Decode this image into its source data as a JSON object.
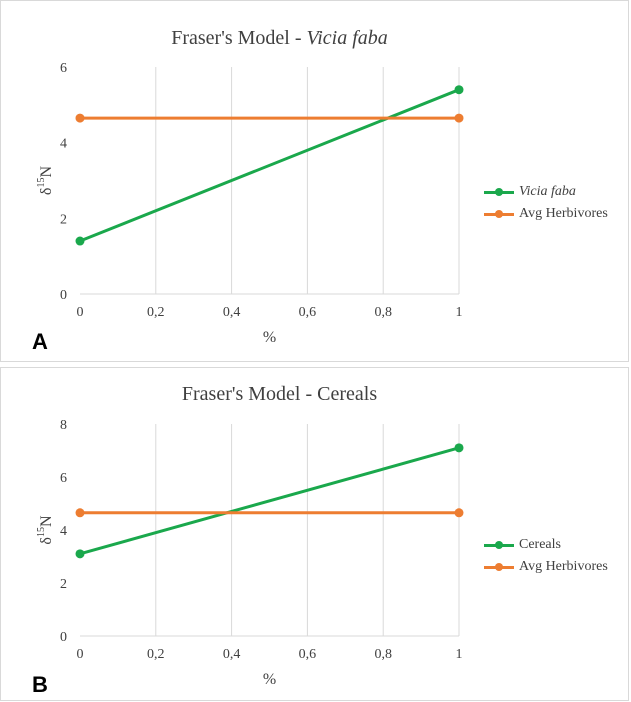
{
  "colors": {
    "green": "#1aa84c",
    "orange": "#ed7d31",
    "grid": "#d9d9d9",
    "text": "#404040"
  },
  "chart_data": [
    {
      "type": "line",
      "panel_label": "A",
      "title_main": "Fraser's Model - ",
      "title_italic": "Vicia faba",
      "xlabel": "%",
      "ylabel_base": "δ",
      "ylabel_sup": "15",
      "ylabel_tail": "N",
      "xlim": [
        0,
        1
      ],
      "ylim": [
        0,
        6
      ],
      "x_ticks": [
        0,
        0.2,
        0.4,
        0.6,
        0.8,
        1
      ],
      "x_tick_labels": [
        "0",
        "0,2",
        "0,4",
        "0,6",
        "0,8",
        "1"
      ],
      "y_ticks": [
        0,
        2,
        4,
        6
      ],
      "y_tick_labels": [
        "0",
        "2",
        "4",
        "6"
      ],
      "grid": "vertical",
      "legend_position": "right",
      "series": [
        {
          "name": "Vicia faba",
          "italic": true,
          "color": "#1aa84c",
          "x": [
            0,
            1
          ],
          "y": [
            1.4,
            5.4
          ]
        },
        {
          "name": "Avg Herbivores",
          "italic": false,
          "color": "#ed7d31",
          "x": [
            0,
            1
          ],
          "y": [
            4.65,
            4.65
          ]
        }
      ]
    },
    {
      "type": "line",
      "panel_label": "B",
      "title_main": "Fraser's Model - Cereals",
      "title_italic": "",
      "xlabel": "%",
      "ylabel_base": "δ",
      "ylabel_sup": "15",
      "ylabel_tail": "N",
      "xlim": [
        0,
        1
      ],
      "ylim": [
        0,
        8
      ],
      "x_ticks": [
        0,
        0.2,
        0.4,
        0.6,
        0.8,
        1
      ],
      "x_tick_labels": [
        "0",
        "0,2",
        "0,4",
        "0,6",
        "0,8",
        "1"
      ],
      "y_ticks": [
        0,
        2,
        4,
        6,
        8
      ],
      "y_tick_labels": [
        "0",
        "2",
        "4",
        "6",
        "8"
      ],
      "grid": "vertical",
      "legend_position": "right",
      "series": [
        {
          "name": "Cereals",
          "italic": false,
          "color": "#1aa84c",
          "x": [
            0,
            1
          ],
          "y": [
            3.1,
            7.1
          ]
        },
        {
          "name": "Avg Herbivores",
          "italic": false,
          "color": "#ed7d31",
          "x": [
            0,
            1
          ],
          "y": [
            4.65,
            4.65
          ]
        }
      ]
    }
  ]
}
